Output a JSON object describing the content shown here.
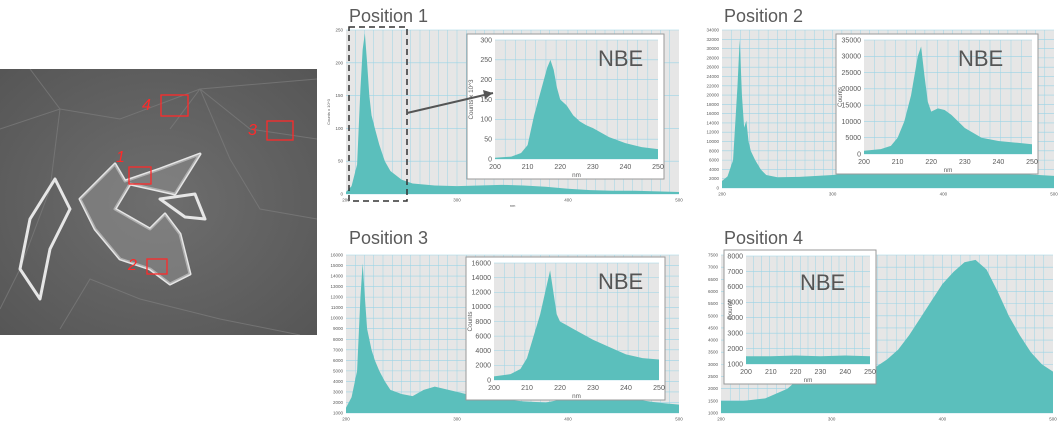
{
  "sem": {
    "markers": [
      {
        "label": "1"
      },
      {
        "label": "2"
      },
      {
        "label": "3"
      },
      {
        "label": "4"
      }
    ],
    "marker_color": "#ff2a2a"
  },
  "colors": {
    "fill": "#5bbfbc",
    "plot_bg": "#e6e6e6",
    "grid": "#9bd4e6",
    "text": "#5a5a5a"
  },
  "chart_data": [
    {
      "id": "pos1",
      "type": "area",
      "title": "Position 1",
      "xlabel": "nm",
      "ylabel": "Counts x 10^3",
      "xlim": [
        200,
        500
      ],
      "ylim": [
        0,
        250
      ],
      "xticks": [
        200,
        300,
        400,
        500
      ],
      "yticks": [
        0,
        50,
        100,
        150,
        200,
        250
      ],
      "x": [
        200,
        205,
        210,
        213,
        215,
        217,
        219,
        221,
        223,
        226,
        230,
        235,
        240,
        250,
        260,
        280,
        300,
        320,
        340,
        360,
        380,
        400,
        420,
        440,
        460,
        480,
        500
      ],
      "y": [
        3,
        12,
        45,
        160,
        220,
        245,
        200,
        150,
        120,
        100,
        75,
        50,
        35,
        22,
        16,
        13,
        12,
        13,
        14,
        13,
        11,
        8,
        6,
        5,
        5,
        4,
        3
      ],
      "inset": {
        "label": "NBE",
        "xlabel": "nm",
        "ylabel": "Counts x 10^3",
        "xlim": [
          200,
          250
        ],
        "ylim": [
          0,
          300
        ],
        "xticks": [
          200,
          210,
          220,
          230,
          240,
          250
        ],
        "yticks": [
          0,
          50,
          100,
          150,
          200,
          250,
          300
        ],
        "x": [
          200,
          205,
          208,
          210,
          212,
          214,
          216,
          217,
          218,
          219,
          220,
          222,
          224,
          226,
          228,
          230,
          235,
          240,
          245,
          250
        ],
        "y": [
          3,
          6,
          15,
          35,
          110,
          170,
          230,
          250,
          225,
          180,
          150,
          135,
          110,
          95,
          85,
          78,
          55,
          40,
          30,
          25
        ]
      }
    },
    {
      "id": "pos2",
      "type": "area",
      "title": "Position 2",
      "xlim": [
        200,
        500
      ],
      "ylim": [
        0,
        34000
      ],
      "xticks": [
        200,
        300,
        400,
        500
      ],
      "yticks": [
        0,
        2000,
        4000,
        6000,
        8000,
        10000,
        12000,
        14000,
        16000,
        18000,
        20000,
        22000,
        24000,
        26000,
        28000,
        30000,
        32000,
        34000
      ],
      "x": [
        200,
        205,
        210,
        214,
        216,
        218,
        220,
        222,
        224,
        226,
        230,
        235,
        240,
        250,
        270,
        300,
        330,
        360,
        400,
        440,
        470,
        500
      ],
      "y": [
        1500,
        2500,
        6000,
        22000,
        32000,
        20000,
        13000,
        14500,
        10000,
        8000,
        6000,
        4000,
        2800,
        2300,
        2400,
        2800,
        3500,
        3300,
        3100,
        3400,
        3000,
        2600
      ],
      "inset": {
        "label": "NBE",
        "xlabel": "nm",
        "ylabel": "Counts",
        "xlim": [
          200,
          250
        ],
        "ylim": [
          0,
          35000
        ],
        "xticks": [
          200,
          210,
          220,
          230,
          240,
          250
        ],
        "yticks": [
          0,
          5000,
          10000,
          15000,
          20000,
          25000,
          30000,
          35000
        ],
        "x": [
          200,
          205,
          208,
          210,
          212,
          214,
          216,
          217,
          218,
          219,
          220,
          222,
          224,
          226,
          228,
          230,
          235,
          240,
          245,
          250
        ],
        "y": [
          1000,
          1500,
          2500,
          5000,
          10000,
          18000,
          30000,
          33000,
          24000,
          16000,
          13000,
          14000,
          13500,
          12000,
          10000,
          8000,
          5000,
          4000,
          3500,
          3000
        ]
      }
    },
    {
      "id": "pos3",
      "type": "area",
      "title": "Position 3",
      "xlim": [
        200,
        500
      ],
      "ylim": [
        1000,
        16000
      ],
      "xticks": [
        200,
        300,
        400,
        500
      ],
      "yticks": [
        1000,
        2000,
        3000,
        4000,
        5000,
        6000,
        7000,
        8000,
        9000,
        10000,
        11000,
        12000,
        13000,
        14000,
        15000,
        16000
      ],
      "x": [
        200,
        205,
        210,
        213,
        215,
        217,
        219,
        221,
        223,
        226,
        230,
        235,
        240,
        250,
        260,
        270,
        280,
        300,
        320,
        340,
        360,
        380,
        400,
        420,
        440,
        460,
        480,
        500
      ],
      "y": [
        1500,
        2500,
        5000,
        12000,
        15200,
        12000,
        9000,
        8000,
        7000,
        6000,
        5000,
        4000,
        3200,
        2800,
        2600,
        3200,
        3500,
        3000,
        2500,
        2300,
        2100,
        2000,
        2400,
        3000,
        2700,
        2300,
        2000,
        1800
      ],
      "inset": {
        "label": "NBE",
        "xlabel": "nm",
        "ylabel": "Counts",
        "xlim": [
          200,
          250
        ],
        "ylim": [
          0,
          16000
        ],
        "xticks": [
          200,
          210,
          220,
          230,
          240,
          250
        ],
        "yticks": [
          0,
          2000,
          4000,
          6000,
          8000,
          10000,
          12000,
          14000,
          16000
        ],
        "x": [
          200,
          205,
          208,
          210,
          212,
          214,
          216,
          217,
          218,
          219,
          220,
          222,
          224,
          226,
          228,
          230,
          235,
          240,
          245,
          250
        ],
        "y": [
          500,
          800,
          1500,
          3000,
          6000,
          9000,
          13000,
          15000,
          12000,
          9000,
          8000,
          7500,
          7000,
          6500,
          6000,
          5500,
          4500,
          3500,
          3000,
          2800
        ]
      }
    },
    {
      "id": "pos4",
      "type": "area",
      "title": "Position 4",
      "xlim": [
        200,
        500
      ],
      "ylim": [
        1000,
        7500
      ],
      "xticks": [
        200,
        300,
        400,
        500
      ],
      "yticks": [
        1000,
        1500,
        2000,
        2500,
        3000,
        3500,
        4000,
        4500,
        5000,
        5500,
        6000,
        6500,
        7000,
        7500
      ],
      "x": [
        200,
        220,
        240,
        260,
        270,
        280,
        290,
        300,
        310,
        320,
        330,
        340,
        350,
        360,
        370,
        380,
        390,
        400,
        410,
        420,
        430,
        440,
        450,
        460,
        470,
        480,
        490,
        500
      ],
      "y": [
        1500,
        1500,
        1600,
        2000,
        2400,
        2700,
        2750,
        2600,
        2500,
        2600,
        2700,
        2900,
        3200,
        3600,
        4200,
        4900,
        5600,
        6300,
        6800,
        7200,
        7300,
        6900,
        6000,
        5000,
        4200,
        3500,
        3000,
        2700
      ],
      "inset": {
        "label": "NBE",
        "xlabel": "nm",
        "ylabel": "Counts",
        "xlim": [
          200,
          250
        ],
        "ylim": [
          1000,
          8000
        ],
        "xticks": [
          200,
          210,
          220,
          230,
          240,
          250
        ],
        "yticks": [
          1000,
          2000,
          3000,
          4000,
          5000,
          6000,
          7000,
          8000
        ],
        "x": [
          200,
          210,
          220,
          230,
          240,
          250
        ],
        "y": [
          1500,
          1500,
          1550,
          1500,
          1550,
          1500
        ]
      }
    }
  ]
}
